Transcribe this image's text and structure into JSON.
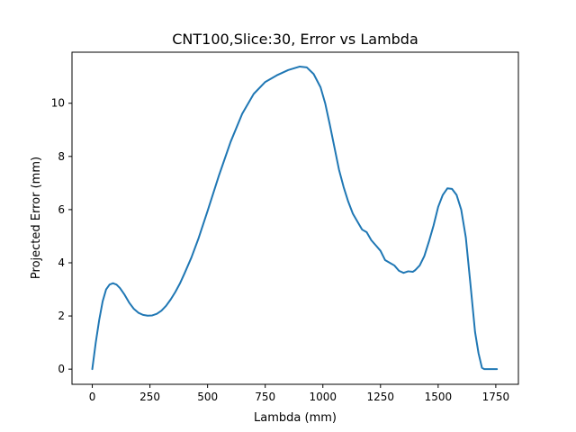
{
  "chart_data": {
    "type": "line",
    "title": "CNT100,Slice:30, Error vs Lambda",
    "xlabel": "Lambda (mm)",
    "ylabel": "Projected Error (mm)",
    "xlim": [
      -88,
      1848
    ],
    "ylim": [
      -0.57,
      11.92
    ],
    "xticks": [
      0,
      250,
      500,
      750,
      1000,
      1250,
      1500,
      1750
    ],
    "yticks": [
      0,
      2,
      4,
      6,
      8,
      10
    ],
    "grid": false,
    "legend": "none",
    "series": [
      {
        "color": "#1f77b4",
        "x": [
          0,
          15,
          30,
          45,
          60,
          75,
          90,
          105,
          120,
          140,
          160,
          180,
          200,
          220,
          240,
          260,
          280,
          300,
          320,
          340,
          360,
          380,
          400,
          430,
          460,
          500,
          550,
          600,
          650,
          700,
          750,
          800,
          850,
          900,
          930,
          960,
          990,
          1010,
          1030,
          1050,
          1070,
          1090,
          1110,
          1130,
          1150,
          1170,
          1190,
          1210,
          1230,
          1250,
          1270,
          1290,
          1310,
          1330,
          1350,
          1370,
          1390,
          1400,
          1420,
          1440,
          1460,
          1480,
          1500,
          1520,
          1540,
          1560,
          1580,
          1600,
          1620,
          1640,
          1650,
          1660,
          1675,
          1690,
          1700,
          1710,
          1720,
          1730,
          1740,
          1750,
          1755
        ],
        "y": [
          0.0,
          1.0,
          1.85,
          2.55,
          3.0,
          3.18,
          3.23,
          3.18,
          3.05,
          2.8,
          2.5,
          2.27,
          2.12,
          2.04,
          2.01,
          2.02,
          2.08,
          2.2,
          2.38,
          2.62,
          2.9,
          3.22,
          3.6,
          4.2,
          4.9,
          5.95,
          7.3,
          8.55,
          9.6,
          10.35,
          10.8,
          11.05,
          11.25,
          11.38,
          11.35,
          11.1,
          10.6,
          10.0,
          9.2,
          8.35,
          7.5,
          6.85,
          6.3,
          5.85,
          5.55,
          5.25,
          5.15,
          4.85,
          4.65,
          4.45,
          4.1,
          4.0,
          3.9,
          3.7,
          3.62,
          3.68,
          3.66,
          3.72,
          3.9,
          4.25,
          4.8,
          5.4,
          6.1,
          6.55,
          6.8,
          6.78,
          6.55,
          6.0,
          4.95,
          3.2,
          2.3,
          1.4,
          0.6,
          0.05,
          0.0,
          0.0,
          0.0,
          0.0,
          0.0,
          0.0,
          0.0
        ]
      }
    ]
  }
}
